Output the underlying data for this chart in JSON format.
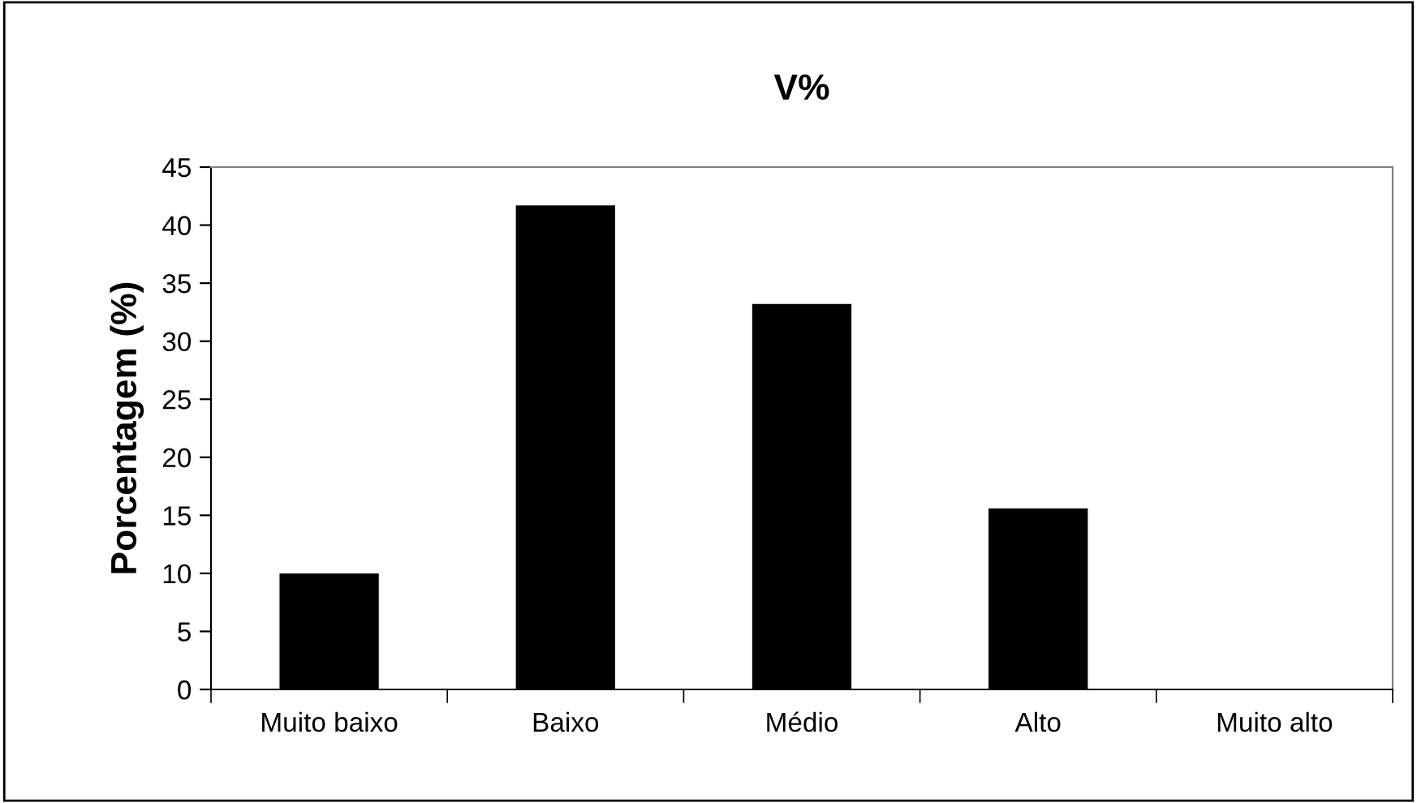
{
  "chart_data": {
    "type": "bar",
    "title": "V%",
    "ylabel": "Porcentagem (%)",
    "categories": [
      "Muito baixo",
      "Baixo",
      "Médio",
      "Alto",
      "Muito alto"
    ],
    "values": [
      10,
      41.7,
      33.2,
      15.6,
      0
    ],
    "color": "#000000",
    "ylim": [
      0,
      45
    ],
    "yticks": [
      0,
      5,
      10,
      15,
      20,
      25,
      30,
      35,
      40,
      45
    ],
    "grid": false,
    "legend": false
  }
}
